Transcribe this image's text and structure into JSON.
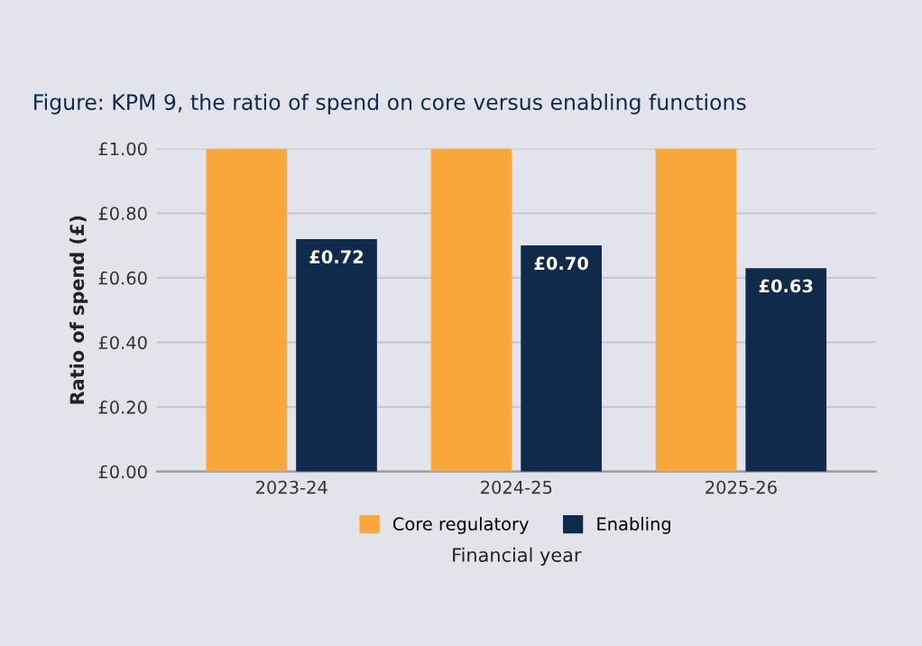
{
  "chart_data": {
    "type": "bar",
    "title": "Figure: KPM 9, the ratio of spend on core versus enabling functions",
    "xlabel": "Financial year",
    "ylabel": "Ratio of spend (£)",
    "categories": [
      "2023-24",
      "2024-25",
      "2025-26"
    ],
    "series": [
      {
        "name": "Core regulatory",
        "color": "#f9a73b",
        "values": [
          1.0,
          1.0,
          1.0
        ]
      },
      {
        "name": "Enabling",
        "color": "#0f2a4a",
        "values": [
          0.72,
          0.7,
          0.63
        ],
        "value_labels": [
          "£0.72",
          "£0.70",
          "£0.63"
        ]
      }
    ],
    "ylim": [
      0,
      1.0
    ],
    "yticks": [
      {
        "value": 0,
        "label": "£0.00"
      },
      {
        "value": 0.2,
        "label": "£0.20"
      },
      {
        "value": 0.4,
        "label": "£0.40"
      },
      {
        "value": 0.6,
        "label": "£0.60"
      },
      {
        "value": 0.8,
        "label": "£0.80"
      },
      {
        "value": 1.0,
        "label": "£1.00"
      }
    ],
    "grid": "y",
    "legend": "bottom"
  }
}
